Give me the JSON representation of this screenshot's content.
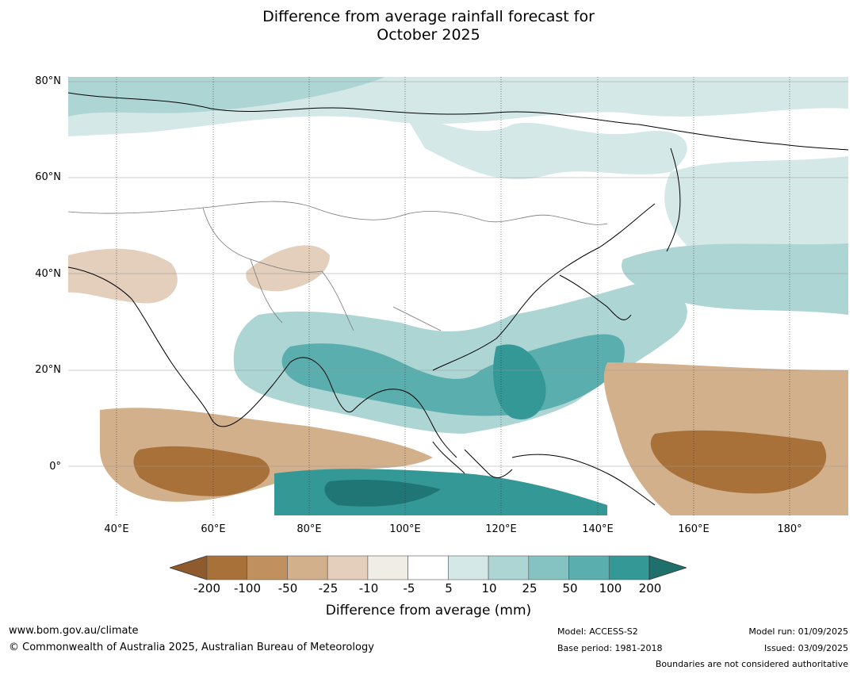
{
  "title": {
    "line1": "Difference from average rainfall forecast for",
    "line2": "October 2025"
  },
  "map": {
    "lat_labels": [
      "80°N",
      "60°N",
      "40°N",
      "20°N",
      "0°"
    ],
    "lon_labels": [
      "40°E",
      "60°E",
      "80°E",
      "100°E",
      "120°E",
      "140°E",
      "160°E",
      "180°"
    ],
    "extent": {
      "lon_min": 30,
      "lon_max": 192,
      "lat_min": -10,
      "lat_max": 81
    }
  },
  "legend": {
    "title": "Difference from average (mm)",
    "ticks": [
      "-200",
      "-100",
      "-50",
      "-25",
      "-10",
      "-5",
      "5",
      "10",
      "25",
      "50",
      "100",
      "200"
    ],
    "colors": [
      "#a9713a",
      "#c0915f",
      "#d3b08c",
      "#e3cfbb",
      "#f0ece6",
      "#ffffff",
      "#d4e8e7",
      "#acd5d4",
      "#84c3c2",
      "#5aaeae",
      "#339896",
      "#1f7674"
    ],
    "under_color": "#8f5a2c",
    "over_color": "#1f6f6d"
  },
  "footer": {
    "website": "www.bom.gov.au/climate",
    "copyright": "© Commonwealth of Australia 2025, Australian Bureau of Meteorology",
    "model": "Model: ACCESS-S2",
    "base_period": "Base period: 1981-2018",
    "model_run": "Model run: 01/09/2025",
    "issued": "Issued: 03/09/2025",
    "disclaimer": "Boundaries are not considered authoritative"
  }
}
